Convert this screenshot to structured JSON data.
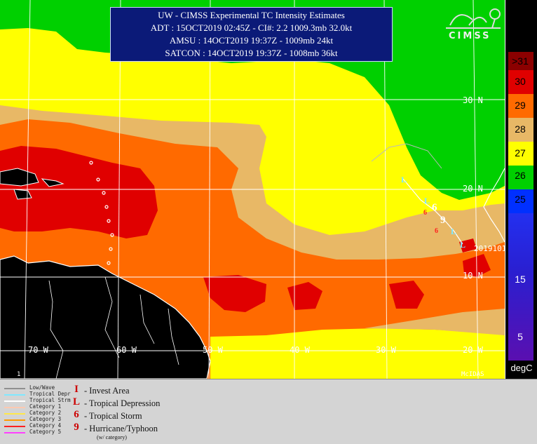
{
  "info": {
    "line1": "UW - CIMSS Experimental TC Intensity Estimates",
    "line2": "ADT : 15OCT2019 02:45Z -  CI#: 2.2  1009.3mb  32.0kt",
    "line3": "AMSU : 14OCT2019 19:37Z -  1009mb  24kt",
    "line4": "SATCON : 14OCT2019 19:37Z -  1008mb  36kt"
  },
  "logo": {
    "name": "cimss-logo",
    "text": "CIMSS"
  },
  "lat_labels": [
    "30 N",
    "20 N",
    "10 N"
  ],
  "lon_labels": [
    "70 W",
    "60 W",
    "50 W",
    "40 W",
    "30 W",
    "20 W"
  ],
  "panel_number": "1",
  "mcidas": "McIDAS",
  "storm_label": "2019101",
  "colorbar": {
    "unit": "degC",
    "ticks": [
      {
        "label": ">31",
        "color": "#8b0000"
      },
      {
        "label": "30",
        "color": "#e00000"
      },
      {
        "label": "29",
        "color": "#ff6a00"
      },
      {
        "label": "28",
        "color": "#e8b866"
      },
      {
        "label": "27",
        "color": "#ffff00"
      },
      {
        "label": "26",
        "color": "#00d000"
      },
      {
        "label": "25",
        "color": "#0030ff"
      },
      {
        "label": "15",
        "color": "#2a1fd0"
      },
      {
        "label": "5",
        "color": "#5a0fb0"
      }
    ]
  },
  "legend": {
    "lines": [
      {
        "label": "Low/Wave",
        "color": "#909090"
      },
      {
        "label": "Tropical Depr",
        "color": "#7fe8ff"
      },
      {
        "label": "Tropical Strm",
        "color": "#ffffff"
      },
      {
        "label": "Category 1",
        "color": "#ffc9b0"
      },
      {
        "label": "Category 2",
        "color": "#ffe84a"
      },
      {
        "label": "Category 3",
        "color": "#ff9a00"
      },
      {
        "label": "Category 4",
        "color": "#ff2020"
      },
      {
        "label": "Category 5",
        "color": "#ff40ff"
      }
    ],
    "symbols": [
      {
        "glyph": "I",
        "label": "- Invest Area"
      },
      {
        "glyph": "L",
        "label": "- Tropical Depression"
      },
      {
        "glyph": "6",
        "label": "- Tropical Storm"
      },
      {
        "glyph": "9",
        "label": "- Hurricane/Typhoon"
      }
    ],
    "note": "(w/ category)"
  },
  "colors": {
    "sst31": "#8b0000",
    "sst30": "#e00000",
    "sst29": "#ff6a00",
    "sst28": "#e8b866",
    "sst27": "#ffff00",
    "sst26": "#00d000",
    "sst25": "#0030ff",
    "land": "#000000",
    "grid": "#ffffff",
    "track": "#7fe8ff"
  }
}
